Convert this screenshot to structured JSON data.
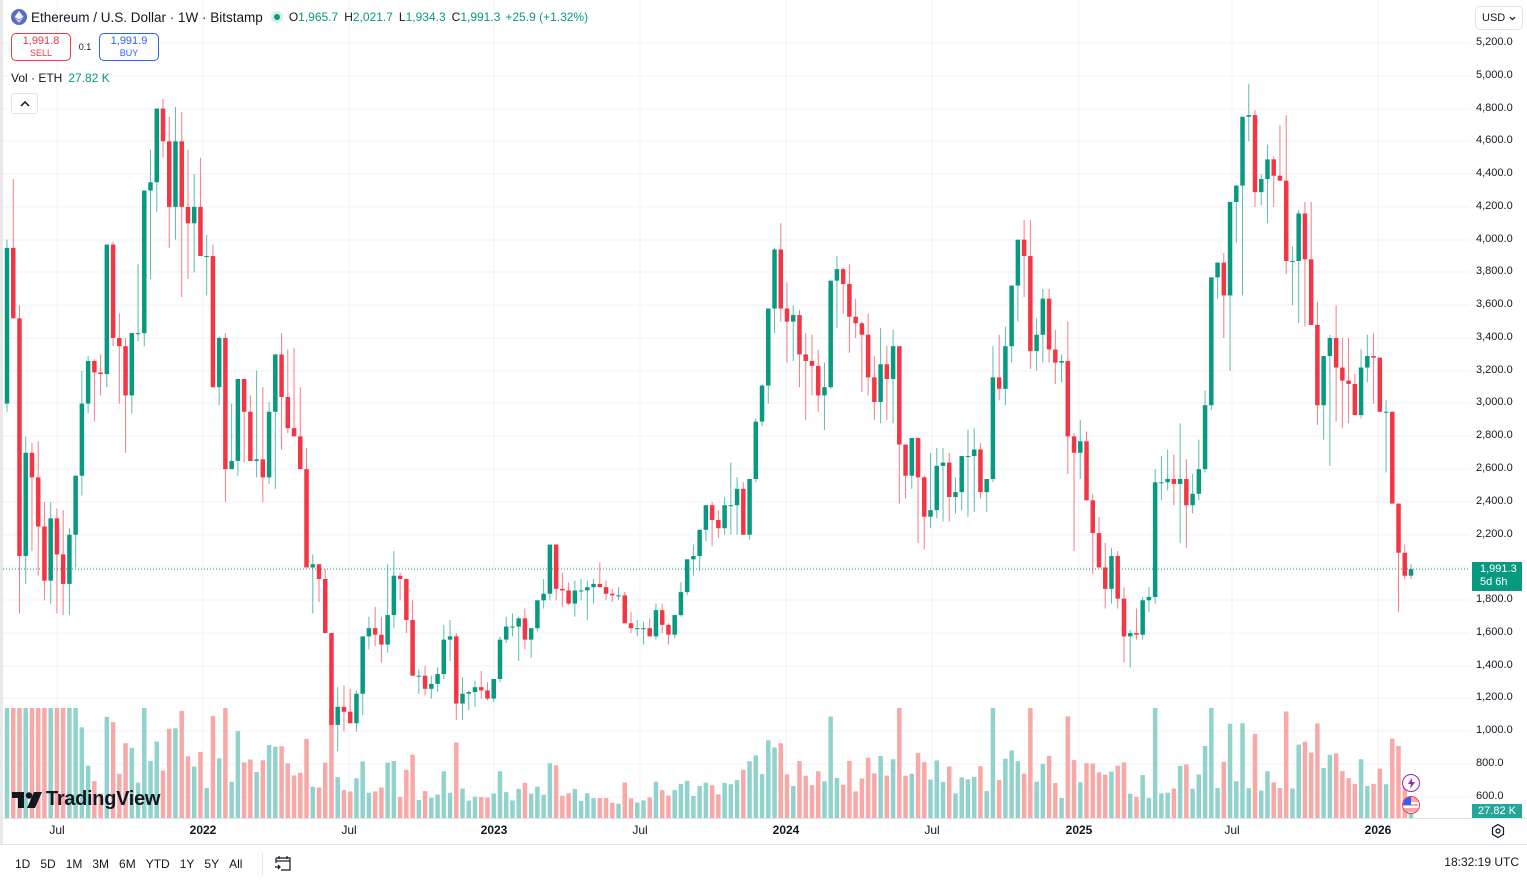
{
  "header": {
    "symbol_title": "Ethereum / U.S. Dollar · 1W · Bitstamp",
    "symbol_icon": "ethereum-icon",
    "ohlc": [
      {
        "key": "O",
        "value": "1,965.7"
      },
      {
        "key": "H",
        "value": "2,021.7"
      },
      {
        "key": "L",
        "value": "1,934.3"
      },
      {
        "key": "C",
        "value": "1,991.3"
      }
    ],
    "change": "+25.9 (+1.32%)"
  },
  "trade": {
    "sell_price": "1,991.8",
    "sell_label": "SELL",
    "spread": "0.1",
    "buy_price": "1,991.9",
    "buy_label": "BUY"
  },
  "volume_legend": {
    "label": "Vol · ETH",
    "value": "27.82 K"
  },
  "collapse_label": "^",
  "currency_select": {
    "value": "USD"
  },
  "price_axis": [
    "5,200.0",
    "5,000.0",
    "4,800.0",
    "4,600.0",
    "4,400.0",
    "4,200.0",
    "4,000.0",
    "3,800.0",
    "3,600.0",
    "3,400.0",
    "3,200.0",
    "3,000.0",
    "2,800.0",
    "2,600.0",
    "2,400.0",
    "2,200.0",
    "2,000.0",
    "1,800.0",
    "1,600.0",
    "1,400.0",
    "1,200.0",
    "1,000.0",
    "800.0",
    "600.0"
  ],
  "last_price": {
    "value": "1,991.3",
    "countdown": "5d 6h"
  },
  "volume_badge": "27.82 K",
  "time_axis": [
    {
      "label": "Jul",
      "year": false
    },
    {
      "label": "2022",
      "year": true
    },
    {
      "label": "Jul",
      "year": false
    },
    {
      "label": "2023",
      "year": true
    },
    {
      "label": "Jul",
      "year": false
    },
    {
      "label": "2024",
      "year": true
    },
    {
      "label": "Jul",
      "year": false
    },
    {
      "label": "2025",
      "year": true
    },
    {
      "label": "Jul",
      "year": false
    },
    {
      "label": "2026",
      "year": true
    }
  ],
  "branding": "TradingView",
  "bottom_bar": {
    "ranges": [
      "1D",
      "5D",
      "1M",
      "3M",
      "6M",
      "YTD",
      "1Y",
      "5Y",
      "All"
    ],
    "clock": "18:32:19 UTC"
  },
  "colors": {
    "up": "#089981",
    "down": "#f23645",
    "vol_up": "#92d2cc",
    "vol_down": "#f7a9a7",
    "grid": "#f0f3fa",
    "last_line": "#089981"
  },
  "chart_data": {
    "type": "candlestick",
    "title": "Ethereum / U.S. Dollar · 1W · Bitstamp",
    "xlabel": "",
    "ylabel": "USD",
    "ylim": [
      600,
      5200
    ],
    "y_ticks": [
      600,
      800,
      1000,
      1200,
      1400,
      1600,
      1800,
      2000,
      2200,
      2400,
      2600,
      2800,
      3000,
      3200,
      3400,
      3600,
      3800,
      4000,
      4200,
      4400,
      4600,
      4800,
      5000,
      5200
    ],
    "x_ticks": [
      "Jul 2021",
      "2022",
      "Jul 2022",
      "2023",
      "Jul 2023",
      "2024",
      "Jul 2024",
      "2025",
      "Jul 2025",
      "2026"
    ],
    "grid": true,
    "last_price": 1991.3,
    "candles_ohlc": [
      [
        3000,
        4000,
        2950,
        3950
      ],
      [
        3950,
        4370,
        3700,
        3520
      ],
      [
        3520,
        3600,
        1720,
        2070
      ],
      [
        2070,
        2800,
        1900,
        2700
      ],
      [
        2700,
        2760,
        2100,
        2550
      ],
      [
        2550,
        2770,
        1950,
        2250
      ],
      [
        2250,
        2400,
        1800,
        1920
      ],
      [
        1920,
        2400,
        1780,
        2300
      ],
      [
        2300,
        2360,
        1720,
        2080
      ],
      [
        2080,
        2350,
        1710,
        1900
      ],
      [
        1900,
        2240,
        1710,
        2200
      ],
      [
        2200,
        2380,
        2000,
        2560
      ],
      [
        2560,
        3200,
        2440,
        3000
      ],
      [
        3000,
        3290,
        2940,
        3260
      ],
      [
        3260,
        3270,
        2890,
        3190
      ],
      [
        3190,
        3300,
        3050,
        3180
      ],
      [
        3180,
        3470,
        3100,
        3970
      ],
      [
        3970,
        3990,
        3350,
        3400
      ],
      [
        3400,
        3550,
        3000,
        3350
      ],
      [
        3350,
        3400,
        2700,
        3050
      ],
      [
        3050,
        3420,
        2940,
        3430
      ],
      [
        3430,
        3850,
        3380,
        3430
      ],
      [
        3430,
        4050,
        3350,
        4300
      ],
      [
        4300,
        4550,
        3760,
        4350
      ],
      [
        4350,
        4650,
        4170,
        4800
      ],
      [
        4800,
        4860,
        4500,
        4600
      ],
      [
        4600,
        4750,
        3950,
        4200
      ],
      [
        4200,
        4810,
        4000,
        4600
      ],
      [
        4600,
        4780,
        3650,
        4200
      ],
      [
        4200,
        4550,
        3760,
        4100
      ],
      [
        4100,
        4400,
        3800,
        4200
      ],
      [
        4200,
        4500,
        3960,
        3900
      ],
      [
        3900,
        4030,
        3660,
        3900
      ],
      [
        3900,
        3970,
        3600,
        3100
      ],
      [
        3100,
        3410,
        2990,
        3400
      ],
      [
        3400,
        3430,
        2400,
        2600
      ],
      [
        2600,
        3000,
        2600,
        2650
      ],
      [
        2650,
        3150,
        2560,
        3150
      ],
      [
        3150,
        3150,
        2640,
        2950
      ],
      [
        2950,
        3050,
        2650,
        2650
      ],
      [
        2650,
        3200,
        2550,
        2660
      ],
      [
        2660,
        3100,
        2400,
        2550
      ],
      [
        2550,
        3010,
        2510,
        2950
      ],
      [
        2950,
        3030,
        2480,
        3300
      ],
      [
        3300,
        3430,
        2720,
        3040
      ],
      [
        3040,
        3330,
        2820,
        2850
      ],
      [
        2850,
        3340,
        2820,
        2800
      ],
      [
        2800,
        3100,
        2780,
        2600
      ],
      [
        2600,
        2730,
        2450,
        2000
      ],
      [
        2000,
        2080,
        1720,
        2020
      ],
      [
        2020,
        2020,
        1790,
        1930
      ],
      [
        1930,
        1990,
        1700,
        1600
      ],
      [
        1600,
        1600,
        1300,
        1040
      ],
      [
        1040,
        1270,
        880,
        1150
      ],
      [
        1150,
        1280,
        1000,
        1120
      ],
      [
        1120,
        1260,
        1070,
        1050
      ],
      [
        1050,
        1250,
        1000,
        1230
      ],
      [
        1230,
        1380,
        1100,
        1580
      ],
      [
        1580,
        1700,
        1500,
        1630
      ],
      [
        1630,
        1760,
        1520,
        1590
      ],
      [
        1590,
        1700,
        1420,
        1530
      ],
      [
        1530,
        2020,
        1480,
        1710
      ],
      [
        1710,
        2100,
        1630,
        1950
      ],
      [
        1950,
        1970,
        1800,
        1930
      ],
      [
        1930,
        1890,
        1600,
        1680
      ],
      [
        1680,
        1800,
        1380,
        1340
      ],
      [
        1340,
        1380,
        1230,
        1340
      ],
      [
        1340,
        1400,
        1220,
        1260
      ],
      [
        1260,
        1340,
        1200,
        1290
      ],
      [
        1290,
        1390,
        1240,
        1350
      ],
      [
        1350,
        1650,
        1320,
        1560
      ],
      [
        1560,
        1680,
        1430,
        1580
      ],
      [
        1580,
        1600,
        1070,
        1170
      ],
      [
        1170,
        1330,
        1070,
        1230
      ],
      [
        1230,
        1250,
        1130,
        1240
      ],
      [
        1240,
        1310,
        1150,
        1270
      ],
      [
        1270,
        1370,
        1200,
        1250
      ],
      [
        1250,
        1300,
        1190,
        1200
      ],
      [
        1200,
        1250,
        1180,
        1320
      ],
      [
        1320,
        1580,
        1300,
        1560
      ],
      [
        1560,
        1700,
        1540,
        1640
      ],
      [
        1640,
        1720,
        1580,
        1640
      ],
      [
        1640,
        1700,
        1430,
        1690
      ],
      [
        1690,
        1750,
        1500,
        1560
      ],
      [
        1560,
        1600,
        1450,
        1630
      ],
      [
        1630,
        1720,
        1610,
        1800
      ],
      [
        1800,
        1930,
        1750,
        1840
      ],
      [
        1840,
        2130,
        1800,
        2140
      ],
      [
        2140,
        2140,
        1800,
        1870
      ],
      [
        1870,
        1970,
        1760,
        1860
      ],
      [
        1860,
        1910,
        1770,
        1780
      ],
      [
        1780,
        1920,
        1700,
        1860
      ],
      [
        1860,
        1930,
        1800,
        1860
      ],
      [
        1860,
        1920,
        1680,
        1880
      ],
      [
        1880,
        1930,
        1780,
        1900
      ],
      [
        1900,
        2030,
        1880,
        1880
      ],
      [
        1880,
        1920,
        1800,
        1840
      ],
      [
        1840,
        1870,
        1790,
        1830
      ],
      [
        1830,
        1880,
        1800,
        1830
      ],
      [
        1830,
        1850,
        1660,
        1660
      ],
      [
        1660,
        1730,
        1600,
        1630
      ],
      [
        1630,
        1680,
        1580,
        1630
      ],
      [
        1630,
        1670,
        1530,
        1630
      ],
      [
        1630,
        1690,
        1580,
        1580
      ],
      [
        1580,
        1780,
        1560,
        1740
      ],
      [
        1740,
        1780,
        1600,
        1650
      ],
      [
        1650,
        1660,
        1530,
        1590
      ],
      [
        1590,
        1700,
        1570,
        1710
      ],
      [
        1710,
        1910,
        1700,
        1850
      ],
      [
        1850,
        2000,
        1830,
        2050
      ],
      [
        2050,
        2140,
        1950,
        2070
      ],
      [
        2070,
        2120,
        1980,
        2230
      ],
      [
        2230,
        2380,
        2160,
        2380
      ],
      [
        2380,
        2400,
        2130,
        2290
      ],
      [
        2290,
        2350,
        2180,
        2240
      ],
      [
        2240,
        2430,
        2200,
        2380
      ],
      [
        2380,
        2640,
        2200,
        2380
      ],
      [
        2380,
        2550,
        2200,
        2480
      ],
      [
        2480,
        2520,
        2280,
        2200
      ],
      [
        2200,
        2470,
        2170,
        2540
      ],
      [
        2540,
        2910,
        2520,
        2890
      ],
      [
        2890,
        3120,
        2860,
        3110
      ],
      [
        3110,
        3470,
        3000,
        3580
      ],
      [
        3580,
        3950,
        3430,
        3940
      ],
      [
        3940,
        4100,
        3500,
        3580
      ],
      [
        3580,
        3740,
        3250,
        3500
      ],
      [
        3500,
        3600,
        3260,
        3540
      ],
      [
        3540,
        3570,
        3100,
        3300
      ],
      [
        3300,
        3430,
        2900,
        3260
      ],
      [
        3260,
        3420,
        3050,
        3230
      ],
      [
        3230,
        3330,
        2950,
        3050
      ],
      [
        3050,
        3250,
        2840,
        3100
      ],
      [
        3100,
        3700,
        3090,
        3750
      ],
      [
        3750,
        3900,
        3460,
        3820
      ],
      [
        3820,
        3830,
        3550,
        3730
      ],
      [
        3730,
        3850,
        3310,
        3530
      ],
      [
        3530,
        3640,
        3400,
        3490
      ],
      [
        3490,
        3500,
        3070,
        3420
      ],
      [
        3420,
        3550,
        3050,
        3160
      ],
      [
        3160,
        3290,
        2900,
        3010
      ],
      [
        3010,
        3460,
        2880,
        3240
      ],
      [
        3240,
        3350,
        2900,
        3150
      ],
      [
        3150,
        3450,
        2880,
        3350
      ],
      [
        3350,
        3350,
        2390,
        2750
      ],
      [
        2750,
        2700,
        2420,
        2560
      ],
      [
        2560,
        2730,
        2480,
        2790
      ],
      [
        2790,
        2770,
        2150,
        2550
      ],
      [
        2550,
        2560,
        2110,
        2310
      ],
      [
        2310,
        2700,
        2240,
        2350
      ],
      [
        2350,
        2730,
        2300,
        2620
      ],
      [
        2620,
        2730,
        2280,
        2640
      ],
      [
        2640,
        2700,
        2280,
        2430
      ],
      [
        2430,
        2550,
        2330,
        2460
      ],
      [
        2460,
        2550,
        2350,
        2680
      ],
      [
        2680,
        2840,
        2310,
        2680
      ],
      [
        2680,
        2850,
        2340,
        2720
      ],
      [
        2720,
        2760,
        2420,
        2460
      ],
      [
        2460,
        2520,
        2340,
        2540
      ],
      [
        2540,
        3350,
        2520,
        3160
      ],
      [
        3160,
        3420,
        3020,
        3090
      ],
      [
        3090,
        3470,
        2990,
        3350
      ],
      [
        3350,
        3700,
        3250,
        3720
      ],
      [
        3720,
        3900,
        3500,
        4000
      ],
      [
        4000,
        4120,
        3650,
        3900
      ],
      [
        3900,
        4120,
        3210,
        3320
      ],
      [
        3320,
        3520,
        3200,
        3420
      ],
      [
        3420,
        3700,
        3250,
        3640
      ],
      [
        3640,
        3700,
        3250,
        3330
      ],
      [
        3330,
        3450,
        3120,
        3250
      ],
      [
        3250,
        3300,
        3130,
        3260
      ],
      [
        3260,
        3500,
        2570,
        2800
      ],
      [
        2800,
        2820,
        2100,
        2700
      ],
      [
        2700,
        2900,
        2540,
        2770
      ],
      [
        2770,
        2830,
        2600,
        2410
      ],
      [
        2410,
        2450,
        1960,
        2210
      ],
      [
        2210,
        2310,
        2000,
        2000
      ],
      [
        2000,
        2150,
        1750,
        1870
      ],
      [
        1870,
        2120,
        1780,
        2070
      ],
      [
        2070,
        2100,
        1750,
        1810
      ],
      [
        1810,
        1880,
        1420,
        1580
      ],
      [
        1580,
        1620,
        1390,
        1600
      ],
      [
        1600,
        1750,
        1560,
        1590
      ],
      [
        1590,
        1820,
        1560,
        1800
      ],
      [
        1800,
        1880,
        1730,
        1820
      ],
      [
        1820,
        2600,
        1780,
        2520
      ],
      [
        2520,
        2680,
        2410,
        2520
      ],
      [
        2520,
        2720,
        2470,
        2540
      ],
      [
        2540,
        2690,
        2380,
        2510
      ],
      [
        2510,
        2880,
        2150,
        2540
      ],
      [
        2540,
        2660,
        2120,
        2380
      ],
      [
        2380,
        2570,
        2330,
        2450
      ],
      [
        2450,
        2780,
        2410,
        2600
      ],
      [
        2600,
        3080,
        2580,
        2990
      ],
      [
        2990,
        3600,
        2960,
        3770
      ],
      [
        3770,
        3860,
        3640,
        3860
      ],
      [
        3860,
        3920,
        3400,
        3660
      ],
      [
        3660,
        3810,
        3200,
        4230
      ],
      [
        4230,
        4310,
        3980,
        4330
      ],
      [
        4330,
        4530,
        3660,
        4750
      ],
      [
        4750,
        4950,
        4600,
        4760
      ],
      [
        4760,
        4790,
        4200,
        4290
      ],
      [
        4290,
        4400,
        4210,
        4370
      ],
      [
        4370,
        4580,
        4100,
        4490
      ],
      [
        4490,
        4510,
        4200,
        4390
      ],
      [
        4390,
        4700,
        4380,
        4360
      ],
      [
        4360,
        4760,
        3790,
        3870
      ],
      [
        3870,
        3960,
        3600,
        3870
      ],
      [
        3870,
        4180,
        3490,
        4160
      ],
      [
        4160,
        4230,
        3470,
        3880
      ],
      [
        3880,
        4230,
        3870,
        3480
      ],
      [
        3480,
        3620,
        2870,
        2990
      ],
      [
        2990,
        3020,
        2780,
        3290
      ],
      [
        3290,
        3420,
        2620,
        3400
      ],
      [
        3400,
        3600,
        2890,
        3220
      ],
      [
        3220,
        3400,
        2850,
        3140
      ],
      [
        3140,
        3400,
        2880,
        3120
      ],
      [
        3120,
        3180,
        3050,
        2930
      ],
      [
        2930,
        3330,
        2910,
        3220
      ],
      [
        3220,
        3420,
        3130,
        3290
      ],
      [
        3290,
        3430,
        3000,
        3280
      ],
      [
        3280,
        3130,
        2950,
        2950
      ],
      [
        2950,
        3020,
        2580,
        2950
      ],
      [
        2950,
        2950,
        2600,
        2390
      ],
      [
        2390,
        2380,
        1730,
        2090
      ],
      [
        2090,
        2140,
        1930,
        1950
      ],
      [
        1950,
        2020,
        1930,
        1990
      ]
    ]
  }
}
